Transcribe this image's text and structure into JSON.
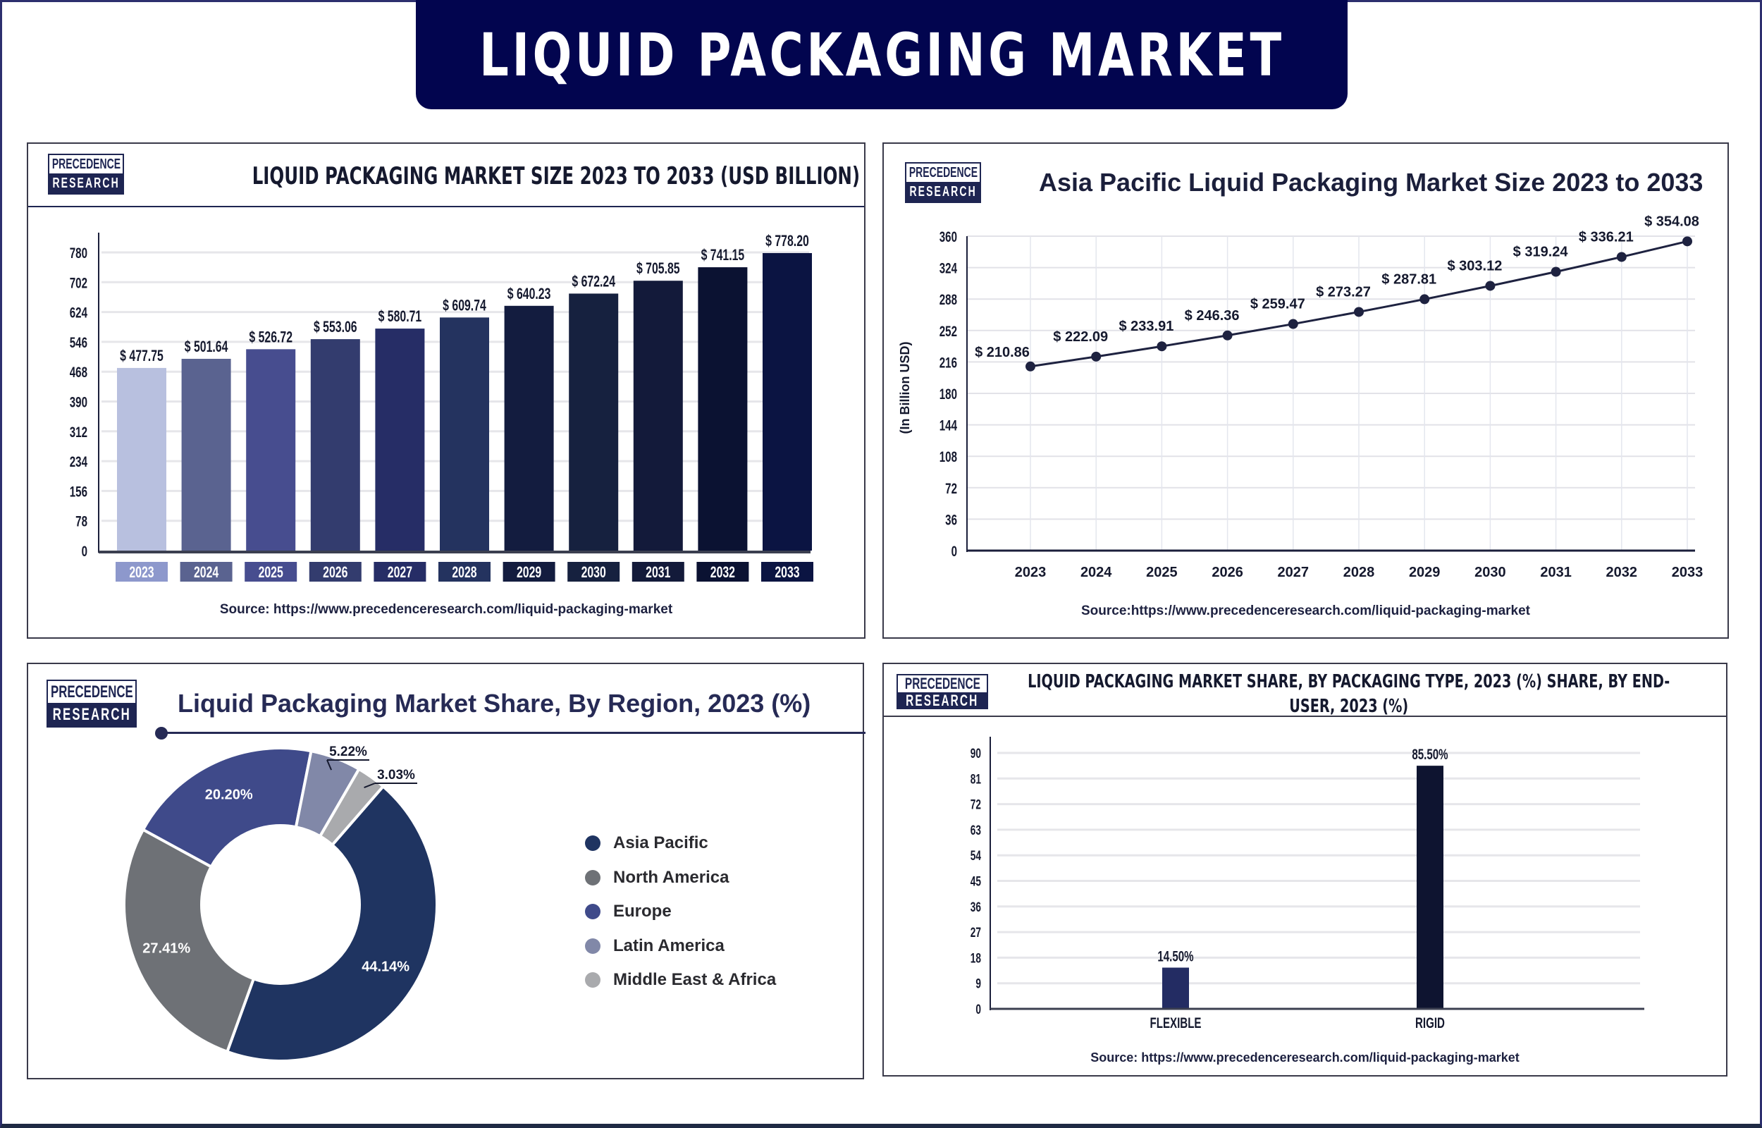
{
  "banner": {
    "title": "LIQUID PACKAGING MARKET"
  },
  "logo": {
    "line1": "PRECEDENCE",
    "line2": "RESEARCH"
  },
  "chart_data": [
    {
      "type": "bar",
      "title": "LIQUID PACKAGING MARKET SIZE 2023 TO 2033 (USD BILLION)",
      "categories": [
        "2023",
        "2024",
        "2025",
        "2026",
        "2027",
        "2028",
        "2029",
        "2030",
        "2031",
        "2032",
        "2033"
      ],
      "values": [
        477.75,
        501.64,
        526.72,
        553.06,
        580.71,
        609.74,
        640.23,
        672.24,
        705.85,
        741.15,
        778.2
      ],
      "data_labels": [
        "$ 477.75",
        "$ 501.64",
        "$ 526.72",
        "$ 553.06",
        "$ 580.71",
        "$ 609.74",
        "$ 640.23",
        "$ 672.24",
        "$ 705.85",
        "$ 741.15",
        "$ 778.20"
      ],
      "yticks": [
        0,
        78,
        156,
        234,
        312,
        390,
        468,
        546,
        624,
        702,
        780
      ],
      "ylim": [
        0,
        780
      ],
      "xlabel": "",
      "ylabel": "",
      "grid": true,
      "colors": [
        "#b8c0df",
        "#5a6390",
        "#474d8f",
        "#333c6e",
        "#262d66",
        "#24335f",
        "#131c3f",
        "#16213f",
        "#131a3a",
        "#0b1232",
        "#0b1442"
      ],
      "source": "Source: https://www.precedenceresearch.com/liquid-packaging-market"
    },
    {
      "type": "line",
      "title": "Asia Pacific Liquid Packaging Market Size 2023 to 2033",
      "x": [
        "2023",
        "2024",
        "2025",
        "2026",
        "2027",
        "2028",
        "2029",
        "2030",
        "2031",
        "2032",
        "2033"
      ],
      "values": [
        210.86,
        222.09,
        233.91,
        246.36,
        259.47,
        273.27,
        287.81,
        303.12,
        319.24,
        336.21,
        354.08
      ],
      "data_labels": [
        "$ 210.86",
        "$ 222.09",
        "$ 233.91",
        "$ 246.36",
        "$ 259.47",
        "$ 273.27",
        "$ 287.81",
        "$ 303.12",
        "$ 319.24",
        "$ 336.21",
        "$ 354.08"
      ],
      "yticks": [
        0,
        36,
        72,
        108,
        144,
        180,
        216,
        252,
        288,
        324,
        360
      ],
      "ylim": [
        0,
        360
      ],
      "xlabel": "",
      "ylabel": "(In Billion USD)",
      "grid": true,
      "line_color": "#1e2240",
      "source": "Source:https://www.precedenceresearch.com/liquid-packaging-market"
    },
    {
      "type": "pie",
      "title": "Liquid Packaging Market Share, By Region, 2023 (%)",
      "labels": [
        "Asia Pacific",
        "North America",
        "Europe",
        "Latin America",
        "Middle East & Africa"
      ],
      "values": [
        44.14,
        27.41,
        20.2,
        5.22,
        3.03
      ],
      "data_labels": [
        "44.14%",
        "27.41%",
        "20.20%",
        "5.22%",
        "3.03%"
      ],
      "colors": [
        "#1f3461",
        "#6e7176",
        "#3f4a8a",
        "#8188a8",
        "#a9aaad"
      ],
      "donut": true,
      "legend": "right"
    },
    {
      "type": "bar",
      "title": "LIQUID PACKAGING MARKET SHARE, BY PACKAGING TYPE, 2023 (%) SHARE, BY END-USER, 2023 (%)",
      "categories": [
        "FLEXIBLE",
        "RIGID"
      ],
      "values": [
        14.5,
        85.5
      ],
      "data_labels": [
        "14.50%",
        "85.50%"
      ],
      "yticks": [
        0,
        9,
        18,
        27,
        36,
        45,
        54,
        63,
        72,
        81,
        90
      ],
      "ylim": [
        0,
        90
      ],
      "xlabel": "",
      "ylabel": "",
      "grid": true,
      "colors": [
        "#232c63",
        "#0e1430"
      ],
      "source": "Source: https://www.precedenceresearch.com/liquid-packaging-market"
    }
  ]
}
